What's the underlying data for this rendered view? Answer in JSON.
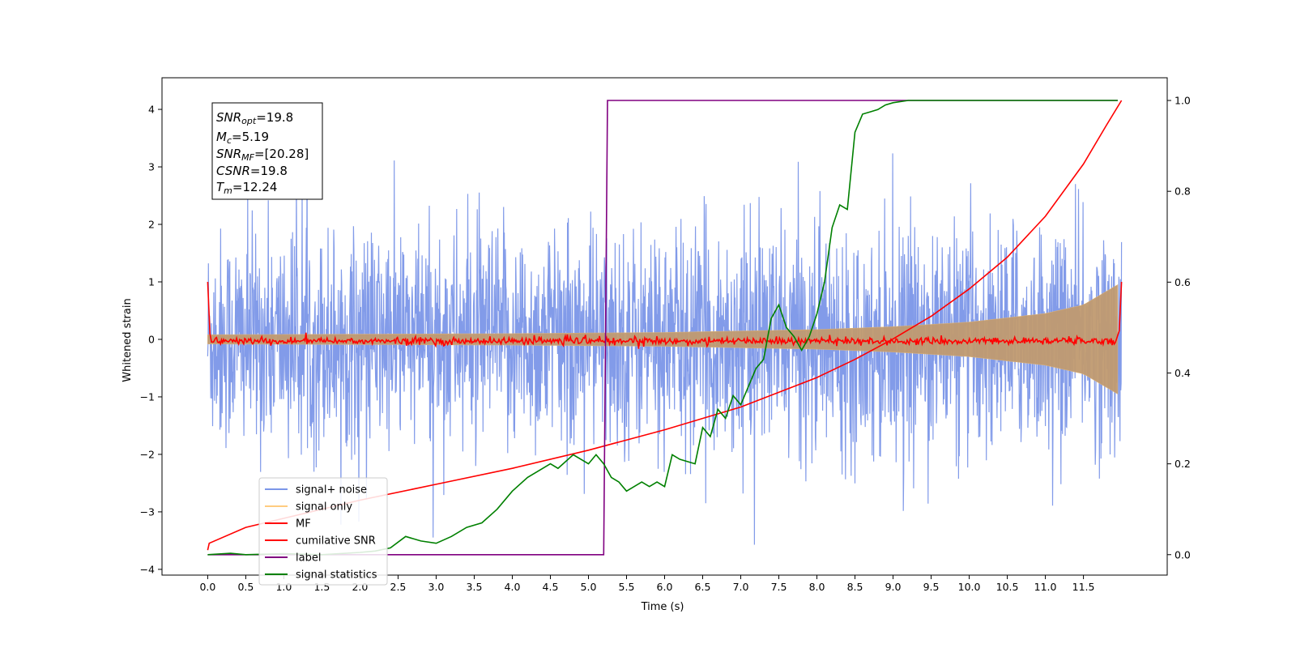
{
  "chart_data": {
    "type": "line",
    "xlabel": "Time (s)",
    "ylabel": "Whitened strain",
    "y2label": "",
    "xlim": [
      -0.6,
      12.6
    ],
    "ylim": [
      -4.1,
      4.55
    ],
    "y2lim": [
      -0.045,
      1.05
    ],
    "x_ticks": [
      "0.0",
      "0.5",
      "1.0",
      "1.5",
      "2.0",
      "2.5",
      "3.0",
      "3.5",
      "4.0",
      "4.5",
      "5.0",
      "5.5",
      "6.0",
      "6.5",
      "7.0",
      "7.5",
      "8.0",
      "8.5",
      "9.0",
      "9.5",
      "10.0",
      "10.5",
      "11.0",
      "11.5"
    ],
    "y_ticks": [
      "4",
      "3",
      "2",
      "1",
      "0",
      "−1",
      "−2",
      "−3",
      "−4"
    ],
    "y2_ticks": [
      "1.0",
      "0.8",
      "0.6",
      "0.4",
      "0.2",
      "0.0"
    ],
    "legend": {
      "placement": "lower-left",
      "entries": [
        {
          "label": "signal+ noise",
          "color": "#7b96e8"
        },
        {
          "label": "signal only",
          "color": "#ffcc80"
        },
        {
          "label": "MF",
          "color": "#ff0000"
        },
        {
          "label": "cumilative SNR",
          "color": "#ff0000"
        },
        {
          "label": "label",
          "color": "#800080"
        },
        {
          "label": "signal statistics",
          "color": "#008000"
        }
      ]
    },
    "annotation": {
      "snr_opt": {
        "name": "SNR",
        "sub": "opt",
        "value": "=19.8"
      },
      "mc": {
        "name": "M",
        "sub": "c",
        "value": "=5.19"
      },
      "snr_mf": {
        "name": "SNR",
        "sub": "MF",
        "value": "=[20.28]"
      },
      "csnr": {
        "name": "CSNR",
        "sub": "",
        "value": "=19.8"
      },
      "tm": {
        "name": "T",
        "sub": "m",
        "value": "=12.24"
      }
    },
    "series": [
      {
        "name": "signal+ noise",
        "axis": "left",
        "color": "#7b96e8",
        "noise_sigma": 1.0,
        "x_start": 0.0,
        "x_end": 12.0
      },
      {
        "name": "signal only",
        "axis": "left",
        "color": "#c09a70",
        "envelope": {
          "x": [
            0,
            2,
            4,
            6,
            8,
            9,
            10,
            11,
            11.5,
            11.95
          ],
          "amp": [
            0.08,
            0.09,
            0.1,
            0.12,
            0.17,
            0.22,
            0.3,
            0.45,
            0.6,
            0.95
          ]
        }
      },
      {
        "name": "MF",
        "axis": "left",
        "color": "#ff0000",
        "x_start": 0.0,
        "x_end": 12.0,
        "edge_value": 1.0,
        "level": -0.03
      },
      {
        "name": "cumilative SNR",
        "axis": "right",
        "color": "#ff0000",
        "x": [
          0.0,
          0.02,
          0.5,
          1,
          2,
          3,
          4,
          5,
          6,
          7,
          8,
          8.5,
          9,
          9.5,
          10,
          10.5,
          11,
          11.5,
          11.8,
          12.0
        ],
        "y": [
          0.01,
          0.025,
          0.06,
          0.08,
          0.12,
          0.155,
          0.19,
          0.23,
          0.275,
          0.325,
          0.39,
          0.43,
          0.475,
          0.525,
          0.585,
          0.655,
          0.745,
          0.86,
          0.945,
          1.0
        ]
      },
      {
        "name": "label",
        "axis": "right",
        "color": "#800080",
        "x": [
          0.0,
          5.2,
          5.25,
          11.95
        ],
        "y": [
          0.0,
          0.0,
          1.0,
          1.0
        ]
      },
      {
        "name": "signal statistics",
        "axis": "right",
        "color": "#008000",
        "x": [
          0.0,
          0.3,
          0.5,
          1.0,
          1.5,
          2.0,
          2.2,
          2.4,
          2.6,
          2.8,
          3.0,
          3.2,
          3.4,
          3.6,
          3.8,
          4.0,
          4.2,
          4.4,
          4.5,
          4.6,
          4.8,
          5.0,
          5.1,
          5.2,
          5.3,
          5.4,
          5.5,
          5.6,
          5.7,
          5.8,
          5.9,
          6.0,
          6.1,
          6.2,
          6.4,
          6.5,
          6.6,
          6.7,
          6.8,
          6.9,
          7.0,
          7.1,
          7.2,
          7.3,
          7.4,
          7.5,
          7.6,
          7.7,
          7.8,
          7.9,
          8.0,
          8.1,
          8.2,
          8.3,
          8.4,
          8.5,
          8.6,
          8.7,
          8.8,
          8.9,
          9.0,
          9.2,
          9.5,
          10.0,
          11.0,
          11.95
        ],
        "y": [
          0.0,
          0.003,
          0.0,
          0.002,
          0.0,
          0.005,
          0.008,
          0.015,
          0.04,
          0.03,
          0.025,
          0.04,
          0.06,
          0.07,
          0.1,
          0.14,
          0.17,
          0.19,
          0.2,
          0.19,
          0.22,
          0.2,
          0.22,
          0.2,
          0.17,
          0.16,
          0.14,
          0.15,
          0.16,
          0.15,
          0.16,
          0.15,
          0.22,
          0.21,
          0.2,
          0.28,
          0.26,
          0.32,
          0.3,
          0.35,
          0.33,
          0.37,
          0.41,
          0.43,
          0.52,
          0.55,
          0.5,
          0.48,
          0.45,
          0.48,
          0.53,
          0.6,
          0.72,
          0.77,
          0.76,
          0.93,
          0.97,
          0.975,
          0.98,
          0.99,
          0.995,
          1.0,
          1.0,
          1.0,
          1.0,
          1.0
        ]
      }
    ]
  }
}
